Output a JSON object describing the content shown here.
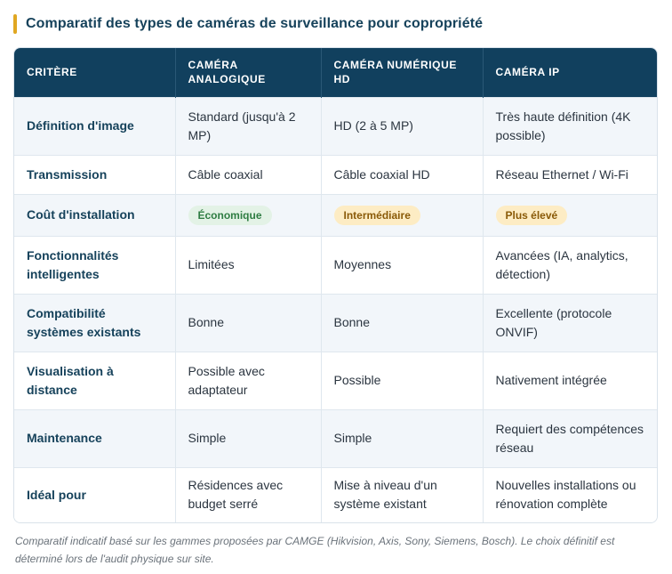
{
  "title": "Comparatif des types de caméras de surveillance pour copropriété",
  "colors": {
    "header_bg": "#11405e",
    "accent_bar": "#e0a721",
    "title": "#16425b"
  },
  "table": {
    "headers": [
      "Critère",
      "Caméra analogique",
      "Caméra numérique HD",
      "Caméra IP"
    ],
    "rows": [
      {
        "criterion": "Définition d'image",
        "cells": [
          "Standard (jusqu'à 2 MP)",
          "HD (2 à 5 MP)",
          "Très haute définition (4K possible)"
        ]
      },
      {
        "criterion": "Transmission",
        "cells": [
          "Câble coaxial",
          "Câble coaxial HD",
          "Réseau Ethernet / Wi-Fi"
        ]
      },
      {
        "criterion": "Coût d'installation",
        "cells": [
          "Économique",
          "Intermédiaire",
          "Plus élevé"
        ]
      },
      {
        "criterion": "Fonctionnalités intelligentes",
        "cells": [
          "Limitées",
          "Moyennes",
          "Avancées (IA, analytics, détection)"
        ]
      },
      {
        "criterion": "Compatibilité systèmes existants",
        "cells": [
          "Bonne",
          "Bonne",
          "Excellente (protocole ONVIF)"
        ]
      },
      {
        "criterion": "Visualisation à distance",
        "cells": [
          "Possible avec adaptateur",
          "Possible",
          "Nativement intégrée"
        ]
      },
      {
        "criterion": "Maintenance",
        "cells": [
          "Simple",
          "Simple",
          "Requiert des compétences réseau"
        ]
      },
      {
        "criterion": "Idéal pour",
        "cells": [
          "Résidences avec budget serré",
          "Mise à niveau d'un système existant",
          "Nouvelles installations ou rénovation complète"
        ]
      }
    ]
  },
  "footnote": "Comparatif indicatif basé sur les gammes proposées par CAMGE (Hikvision, Axis, Sony, Siemens, Bosch). Le choix définitif est déterminé lors de l'audit physique sur site."
}
